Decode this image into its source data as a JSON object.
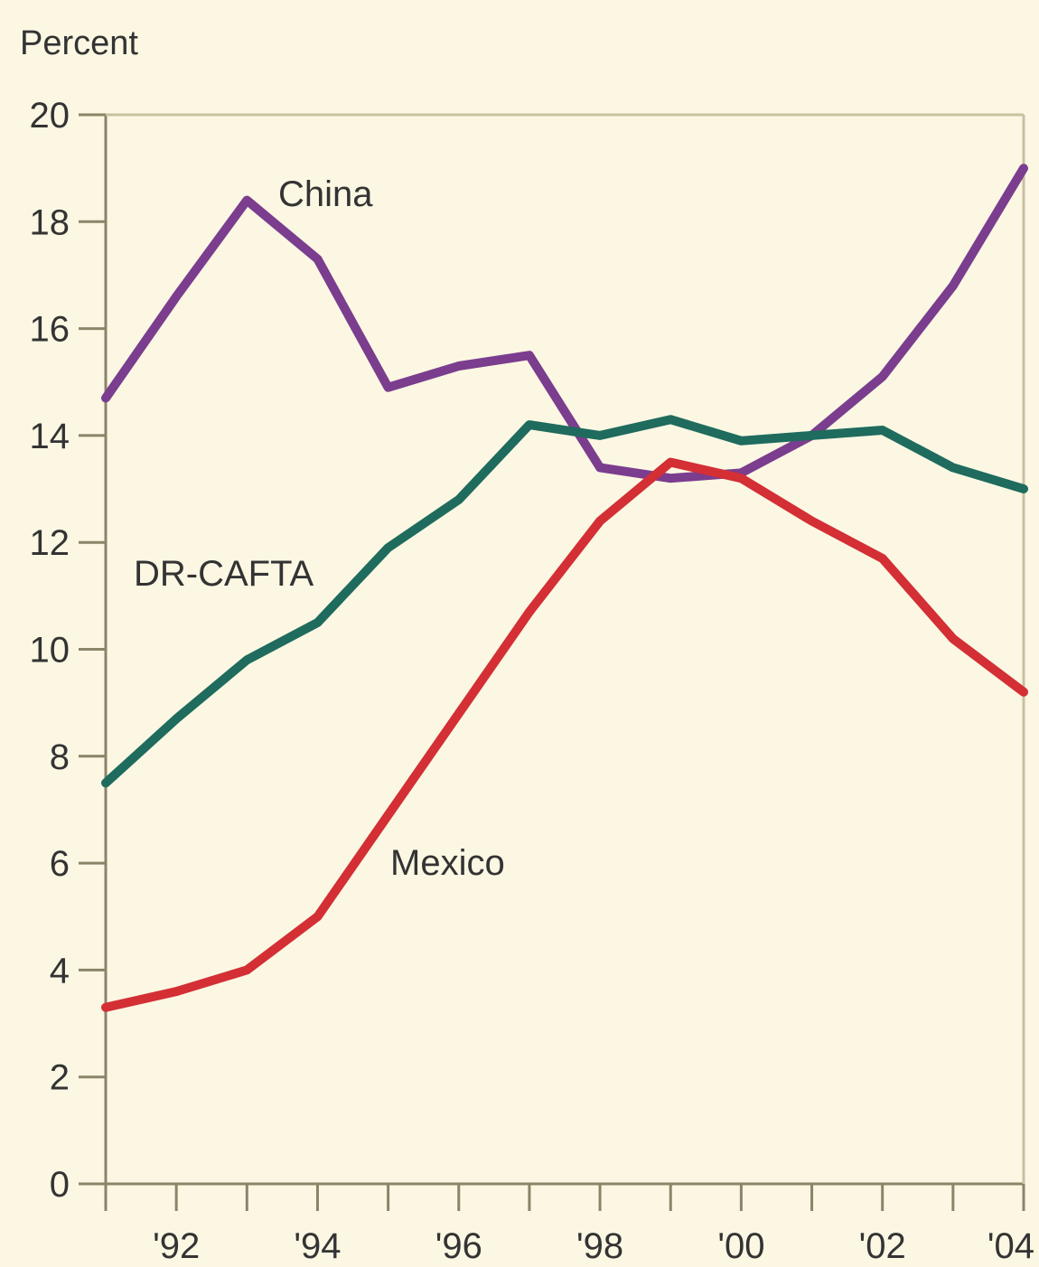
{
  "chart_data": {
    "type": "line",
    "ylabel": "Percent",
    "ylim": [
      0,
      20
    ],
    "yticks": [
      "0",
      "2",
      "4",
      "6",
      "8",
      "10",
      "12",
      "14",
      "16",
      "18",
      "20"
    ],
    "xlim": [
      1991,
      2004
    ],
    "xtick_labels": [
      {
        "x": 1992,
        "label": "'92"
      },
      {
        "x": 1994,
        "label": "'94"
      },
      {
        "x": 1996,
        "label": "'96"
      },
      {
        "x": 1998,
        "label": "'98"
      },
      {
        "x": 2000,
        "label": "'00"
      },
      {
        "x": 2002,
        "label": "'02"
      },
      {
        "x": 2004,
        "label": "'04"
      }
    ],
    "grid": false,
    "series": [
      {
        "name": "China",
        "color": "#7b3d8e",
        "points": [
          [
            1991,
            14.7
          ],
          [
            1992,
            16.6
          ],
          [
            1993,
            18.4
          ],
          [
            1994,
            17.3
          ],
          [
            1995,
            14.9
          ],
          [
            1996,
            15.3
          ],
          [
            1997,
            15.5
          ],
          [
            1998,
            13.4
          ],
          [
            1999,
            13.2
          ],
          [
            2000,
            13.3
          ],
          [
            2001,
            14.0
          ],
          [
            2002,
            15.1
          ],
          [
            2003,
            16.8
          ],
          [
            2004,
            19.0
          ]
        ]
      },
      {
        "name": "DR-CAFTA",
        "color": "#1f6b5e",
        "points": [
          [
            1991,
            7.5
          ],
          [
            1992,
            8.7
          ],
          [
            1993,
            9.8
          ],
          [
            1994,
            10.5
          ],
          [
            1995,
            11.9
          ],
          [
            1996,
            12.8
          ],
          [
            1997,
            14.2
          ],
          [
            1998,
            14.0
          ],
          [
            1999,
            14.3
          ],
          [
            2000,
            13.9
          ],
          [
            2001,
            14.0
          ],
          [
            2002,
            14.1
          ],
          [
            2003,
            13.4
          ],
          [
            2004,
            13.0
          ]
        ]
      },
      {
        "name": "Mexico",
        "color": "#d32f35",
        "points": [
          [
            1991,
            3.3
          ],
          [
            1992,
            3.6
          ],
          [
            1993,
            4.0
          ],
          [
            1994,
            5.0
          ],
          [
            1995,
            6.9
          ],
          [
            1996,
            8.8
          ],
          [
            1997,
            10.7
          ],
          [
            1998,
            12.4
          ],
          [
            1999,
            13.5
          ],
          [
            2000,
            13.2
          ],
          [
            2001,
            12.4
          ],
          [
            2002,
            11.7
          ],
          [
            2003,
            10.2
          ],
          [
            2004,
            9.2
          ]
        ]
      }
    ],
    "annotations": [
      {
        "series": "China",
        "text": "China"
      },
      {
        "series": "DR-CAFTA",
        "text": "DR-CAFTA"
      },
      {
        "series": "Mexico",
        "text": "Mexico"
      }
    ]
  }
}
